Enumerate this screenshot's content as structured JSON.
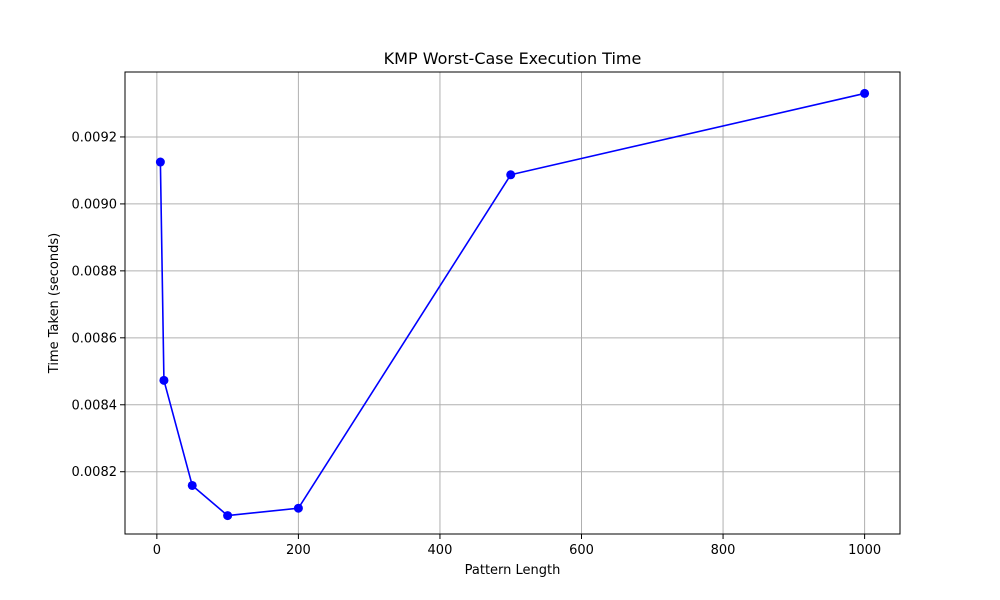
{
  "chart_data": {
    "type": "line",
    "title": "KMP Worst-Case Execution Time",
    "xlabel": "Pattern Length",
    "ylabel": "Time Taken (seconds)",
    "xlim": [
      -45,
      1050
    ],
    "ylim": [
      0.008014,
      0.009394
    ],
    "xticks": [
      0,
      200,
      400,
      600,
      800,
      1000
    ],
    "yticks": [
      0.0082,
      0.0084,
      0.0086,
      0.0088,
      0.009,
      0.0092
    ],
    "xtick_labels": [
      "0",
      "200",
      "400",
      "600",
      "800",
      "1000"
    ],
    "ytick_labels": [
      "0.0082",
      "0.0084",
      "0.0086",
      "0.0088",
      "0.0090",
      "0.0092"
    ],
    "grid": true,
    "series": [
      {
        "x": [
          5,
          10,
          50,
          100,
          200,
          500,
          1000
        ],
        "y": [
          0.009125,
          0.008473,
          0.008159,
          0.008069,
          0.008091,
          0.009087,
          0.00933
        ],
        "color": "#0000ff",
        "marker": "circle"
      }
    ]
  }
}
